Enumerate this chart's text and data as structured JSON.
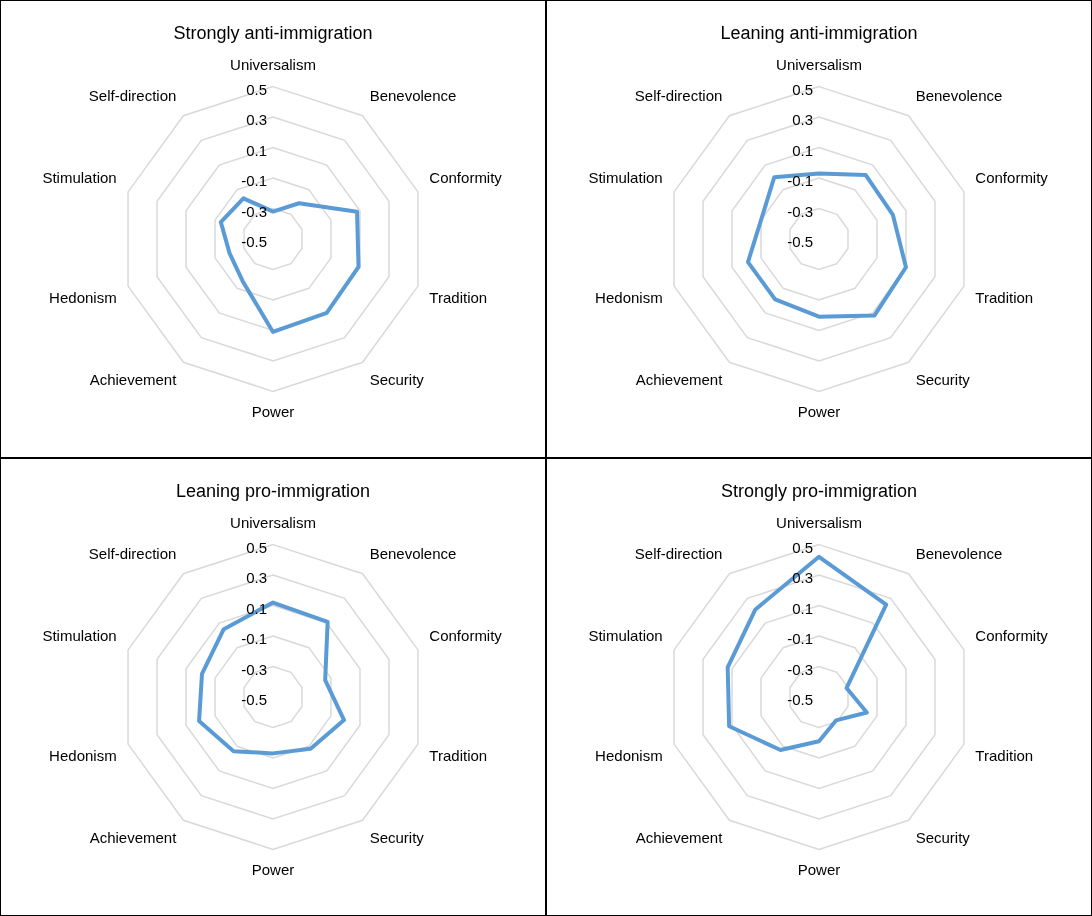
{
  "chart_data": [
    {
      "type": "radar",
      "title": "Strongly anti-immigration",
      "categories": [
        "Universalism",
        "Benevolence",
        "Conformity",
        "Tradition",
        "Security",
        "Power",
        "Achievement",
        "Hedonism",
        "Stimulation",
        "Self-direction"
      ],
      "series": [
        {
          "color": "#5b9bd5",
          "values": [
            -0.32,
            -0.21,
            0.08,
            0.09,
            0.1,
            0.11,
            -0.16,
            -0.2,
            -0.14,
            -0.17
          ]
        }
      ],
      "ylim": [
        -0.5,
        0.5
      ],
      "yticks": [
        -0.5,
        -0.3,
        -0.1,
        0.1,
        0.3,
        0.5
      ],
      "grid": true,
      "legend": false,
      "marker": "none"
    },
    {
      "type": "radar",
      "title": "Leaning anti-immigration",
      "categories": [
        "Universalism",
        "Benevolence",
        "Conformity",
        "Tradition",
        "Security",
        "Power",
        "Achievement",
        "Hedonism",
        "Stimulation",
        "Self-direction"
      ],
      "series": [
        {
          "color": "#5b9bd5",
          "values": [
            -0.07,
            0.02,
            0.01,
            0.1,
            0.12,
            0.01,
            -0.01,
            -0.01,
            -0.1,
            0.0
          ]
        }
      ],
      "ylim": [
        -0.5,
        0.5
      ],
      "yticks": [
        -0.5,
        -0.3,
        -0.1,
        0.1,
        0.3,
        0.5
      ],
      "grid": true,
      "legend": false,
      "marker": "none"
    },
    {
      "type": "radar",
      "title": "Leaning pro-immigration",
      "categories": [
        "Universalism",
        "Benevolence",
        "Conformity",
        "Tradition",
        "Security",
        "Power",
        "Achievement",
        "Hedonism",
        "Stimulation",
        "Self-direction"
      ],
      "series": [
        {
          "color": "#5b9bd5",
          "values": [
            0.12,
            0.11,
            -0.14,
            -0.01,
            -0.08,
            -0.13,
            -0.06,
            0.01,
            -0.01,
            0.05
          ]
        }
      ],
      "ylim": [
        -0.5,
        0.5
      ],
      "yticks": [
        -0.5,
        -0.3,
        -0.1,
        0.1,
        0.3,
        0.5
      ],
      "grid": true,
      "legend": false,
      "marker": "none"
    },
    {
      "type": "radar",
      "title": "Strongly pro-immigration",
      "categories": [
        "Universalism",
        "Benevolence",
        "Conformity",
        "Tradition",
        "Security",
        "Power",
        "Achievement",
        "Hedonism",
        "Stimulation",
        "Self-direction"
      ],
      "series": [
        {
          "color": "#5b9bd5",
          "values": [
            0.42,
            0.25,
            -0.31,
            -0.17,
            -0.31,
            -0.21,
            -0.07,
            0.12,
            0.13,
            0.21
          ]
        }
      ],
      "ylim": [
        -0.5,
        0.5
      ],
      "yticks": [
        -0.5,
        -0.3,
        -0.1,
        0.1,
        0.3,
        0.5
      ],
      "grid": true,
      "legend": false,
      "marker": "none"
    }
  ]
}
